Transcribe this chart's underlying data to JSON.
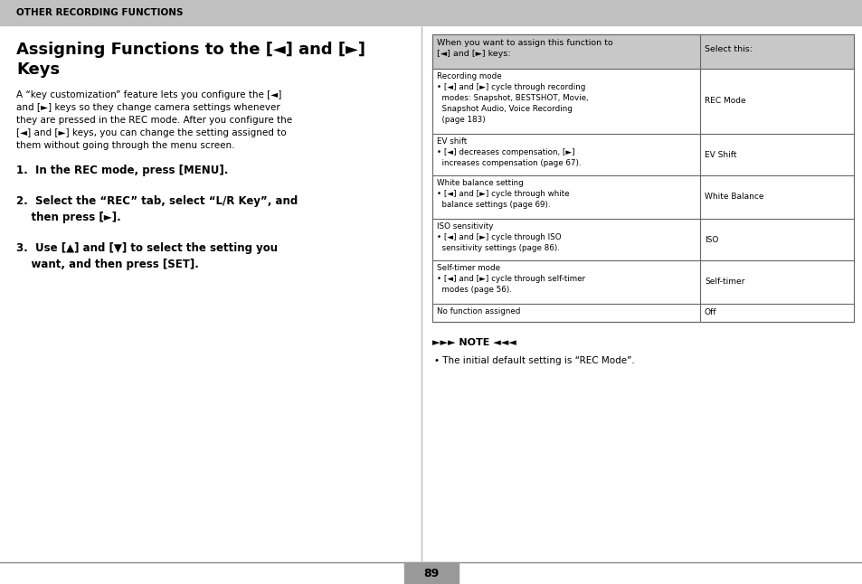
{
  "page_bg": "#ffffff",
  "header_bg_color": "#c0c0c0",
  "header_text": "OTHER RECORDING FUNCTIONS",
  "title_line1": "Assigning Functions to the [◄] and [►]",
  "title_line2": "Keys",
  "body_text": "A “key customization” feature lets you configure the [◄]\nand [►] keys so they change camera settings whenever\nthey are pressed in the REC mode. After you configure the\n[◄] and [►] keys, you can change the setting assigned to\nthem without going through the menu screen.",
  "step1": "1.  In the REC mode, press [MENU].",
  "step2_line1": "2.  Select the “REC” tab, select “L/R Key”, and",
  "step2_line2": "    then press [►].",
  "step3_line1": "3.  Use [▲] and [▼] to select the setting you",
  "step3_line2": "    want, and then press [SET].",
  "table_header_col1": "When you want to assign this function to\n[◄] and [►] keys:",
  "table_header_col2": "Select this:",
  "table_rows": [
    {
      "col1_title": "Recording mode",
      "col1_body": "• [◄] and [►] cycle through recording\n  modes: Snapshot, BESTSHOT, Movie,\n  Snapshot Audio, Voice Recording\n  (page 183)",
      "col2": "REC Mode"
    },
    {
      "col1_title": "EV shift",
      "col1_body": "• [◄] decreases compensation, [►]\n  increases compensation (page 67).",
      "col2": "EV Shift"
    },
    {
      "col1_title": "White balance setting",
      "col1_body": "• [◄] and [►] cycle through white\n  balance settings (page 69).",
      "col2": "White Balance"
    },
    {
      "col1_title": "ISO sensitivity",
      "col1_body": "• [◄] and [►] cycle through ISO\n  sensitivity settings (page 86).",
      "col2": "ISO"
    },
    {
      "col1_title": "Self-timer mode",
      "col1_body": "• [◄] and [►] cycle through self-timer\n  modes (page 56).",
      "col2": "Self-timer"
    },
    {
      "col1_title": "No function assigned",
      "col1_body": "",
      "col2": "Off"
    }
  ],
  "note_label": "►►► NOTE ◄◄◄",
  "note_body": "• The initial default setting is “REC Mode”.",
  "page_number": "89",
  "table_border_color": "#666666",
  "table_header_bg": "#c8c8c8",
  "footer_bg": "#999999"
}
